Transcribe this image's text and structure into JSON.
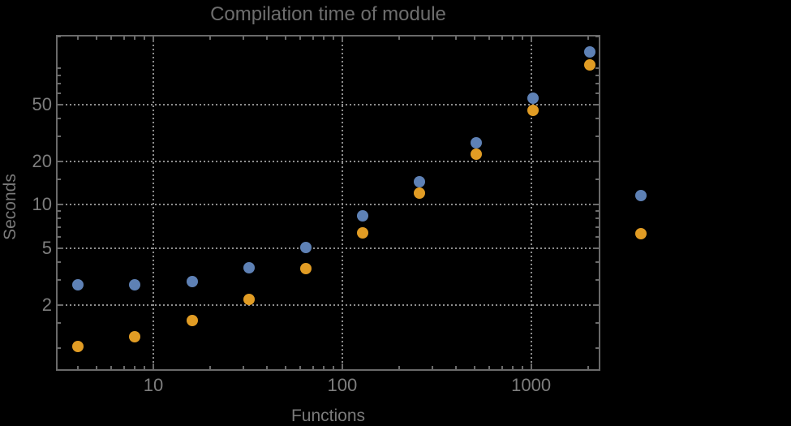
{
  "chart_data": {
    "type": "scatter",
    "title": "Compilation time of module",
    "xlabel": "Functions",
    "ylabel": "Seconds",
    "xscale": "log",
    "yscale": "log",
    "x_range": [
      3.05,
      2327
    ],
    "y_range": [
      0.695,
      153
    ],
    "grid": "dotted",
    "legend_position": "right-outside",
    "x": [
      4,
      8,
      16,
      32,
      64,
      128,
      256,
      512,
      1024,
      2048
    ],
    "series": [
      {
        "name": "series-1-blue",
        "color": "#5e81b5",
        "values": [
          2.75,
          2.77,
          2.9,
          3.65,
          5.05,
          8.4,
          14.5,
          27,
          55.5,
          116
        ]
      },
      {
        "name": "series-2-orange",
        "color": "#e19c24",
        "values": [
          1.03,
          1.2,
          1.55,
          2.2,
          3.6,
          6.4,
          12.1,
          22.5,
          45.5,
          94.5
        ]
      }
    ],
    "x_ticks": {
      "major": [
        10,
        100,
        1000
      ],
      "labels": [
        "10",
        "100",
        "1000"
      ],
      "minor": [
        4,
        5,
        6,
        7,
        8,
        9,
        20,
        30,
        40,
        50,
        60,
        70,
        80,
        90,
        200,
        300,
        400,
        500,
        600,
        700,
        800,
        900,
        2000
      ]
    },
    "y_ticks": {
      "major": [
        2,
        5,
        10,
        20,
        50
      ],
      "labels": [
        "2",
        "5",
        "10",
        "20",
        "50"
      ],
      "minor": [
        1,
        1.5,
        3,
        4,
        6,
        7,
        8,
        9,
        15,
        30,
        40,
        60,
        70,
        80,
        90,
        150
      ]
    },
    "colors": {
      "background": "#000000",
      "frame": "#6a6a6a",
      "grid": "#8e8e8e",
      "title": "#6e6e6e",
      "tick_label": "#7e7e7e",
      "axis_label": "#7a7a7a"
    }
  },
  "legend": {
    "markers": [
      {
        "name": "series-1-marker",
        "color": "#5e81b5"
      },
      {
        "name": "series-2-marker",
        "color": "#e19c24"
      }
    ]
  }
}
